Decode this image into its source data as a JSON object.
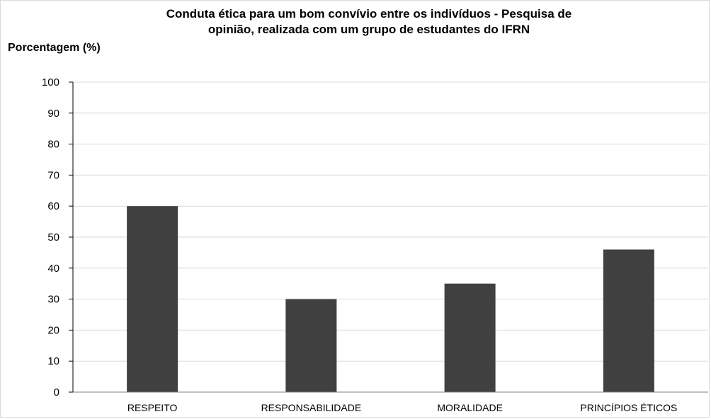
{
  "chart_data": {
    "type": "bar",
    "title_line1": "Conduta ética para um bom convívio entre os indivíduos - Pesquisa de",
    "title_line2": "opinião, realizada com um grupo de estudantes do IFRN",
    "ylabel": "Porcentagem (%)",
    "xlabel": "",
    "categories": [
      "RESPEITO",
      "RESPONSABILIDADE",
      "MORALIDADE",
      "PRINCÍPIOS ÉTICOS"
    ],
    "values": [
      60,
      30,
      35,
      46
    ],
    "ylim": [
      0,
      100
    ],
    "yticks": [
      0,
      10,
      20,
      30,
      40,
      50,
      60,
      70,
      80,
      90,
      100
    ],
    "grid": true,
    "legend": "none",
    "colors": {
      "bar": "#404040",
      "grid": "#d9d9d9",
      "axis": "#000000"
    }
  }
}
